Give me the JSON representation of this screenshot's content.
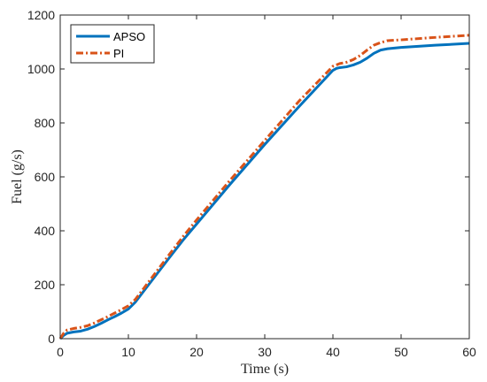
{
  "chart_data": {
    "type": "line",
    "title": "",
    "xlabel": "Time (s)",
    "ylabel": "Fuel (g/s)",
    "xlim": [
      0,
      60
    ],
    "ylim": [
      0,
      1200
    ],
    "xticks": [
      0,
      10,
      20,
      30,
      40,
      50,
      60
    ],
    "yticks": [
      0,
      200,
      400,
      600,
      800,
      1000,
      1200
    ],
    "grid": false,
    "legend_position": "top-left",
    "series": [
      {
        "name": "APSO",
        "color": "#0072BD",
        "style": "solid",
        "x": [
          0,
          0.5,
          1,
          2,
          3,
          4,
          5,
          6,
          7,
          8,
          9,
          10,
          11,
          12,
          14,
          16,
          18,
          20,
          25,
          30,
          35,
          40,
          40.5,
          41,
          42,
          43,
          44,
          45,
          46,
          47,
          48,
          50,
          55,
          60
        ],
        "y": [
          0,
          12,
          20,
          25,
          28,
          35,
          45,
          57,
          70,
          82,
          95,
          110,
          135,
          168,
          234,
          300,
          365,
          425,
          575,
          720,
          860,
          995,
          1002,
          1005,
          1008,
          1015,
          1025,
          1040,
          1058,
          1070,
          1075,
          1080,
          1088,
          1095
        ]
      },
      {
        "name": "PI",
        "color": "#D95319",
        "style": "dash-dot",
        "x": [
          0,
          0.5,
          1,
          2,
          3,
          4,
          5,
          6,
          7,
          8,
          9,
          10,
          11,
          12,
          14,
          16,
          18,
          20,
          25,
          30,
          35,
          40,
          40.5,
          41,
          42,
          43,
          44,
          45,
          46,
          47,
          48,
          50,
          55,
          60
        ],
        "y": [
          0,
          20,
          32,
          38,
          42,
          48,
          58,
          70,
          82,
          95,
          108,
          122,
          145,
          178,
          245,
          312,
          378,
          440,
          590,
          735,
          880,
          1010,
          1015,
          1020,
          1025,
          1035,
          1050,
          1070,
          1088,
          1098,
          1105,
          1108,
          1117,
          1125
        ]
      }
    ]
  }
}
